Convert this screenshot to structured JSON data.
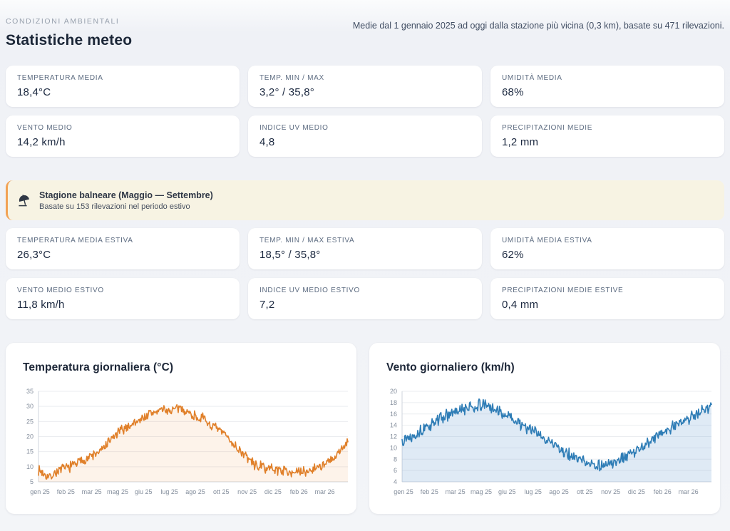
{
  "header": {
    "eyebrow": "CONDIZIONI AMBIENTALI",
    "title": "Statistiche meteo",
    "note": "Medie dal 1 gennaio 2025 ad oggi dalla stazione più vicina (0,3 km), basate su 471 rilevazioni."
  },
  "stats": {
    "general": [
      {
        "label": "TEMPERATURA MEDIA",
        "value": "18,4°C"
      },
      {
        "label": "TEMP. MIN / MAX",
        "value": "3,2° / 35,8°"
      },
      {
        "label": "UMIDITÀ MEDIA",
        "value": "68%"
      },
      {
        "label": "VENTO MEDIO",
        "value": "14,2 km/h"
      },
      {
        "label": "INDICE UV MEDIO",
        "value": "4,8"
      },
      {
        "label": "PRECIPITAZIONI MEDIE",
        "value": "1,2 mm"
      }
    ],
    "summer": [
      {
        "label": "TEMPERATURA MEDIA ESTIVA",
        "value": "26,3°C"
      },
      {
        "label": "TEMP. MIN / MAX ESTIVA",
        "value": "18,5° / 35,8°"
      },
      {
        "label": "UMIDITÀ MEDIA ESTIVA",
        "value": "62%"
      },
      {
        "label": "VENTO MEDIO ESTIVO",
        "value": "11,8 km/h"
      },
      {
        "label": "INDICE UV MEDIO ESTIVO",
        "value": "7,2"
      },
      {
        "label": "PRECIPITAZIONI MEDIE ESTIVE",
        "value": "0,4 mm"
      }
    ]
  },
  "banner": {
    "icon": "beach-umbrella",
    "title": "Stagione balneare (Maggio — Settembre)",
    "subtitle": "Basate su 153 rilevazioni nel periodo estivo",
    "accent_color": "#f2a254",
    "background_color": "#f7f3e3"
  },
  "chart_data": [
    {
      "type": "area",
      "title": "Temperatura giornaliera (°C)",
      "unit": "°C",
      "x_range": "1 gen 2025 — mar 2026",
      "n_points": 455,
      "ylim": [
        5,
        35
      ],
      "yticks": [
        5,
        10,
        15,
        20,
        25,
        30,
        35
      ],
      "xtick_labels": [
        "gen 25",
        "feb 25",
        "mar 25",
        "mag 25",
        "giu 25",
        "lug 25",
        "ago 25",
        "ott 25",
        "nov 25",
        "dic 25",
        "feb 26",
        "mar 26"
      ],
      "xtick_interval_days": 38,
      "grid": true,
      "line_color": "#e0802a",
      "fill_color": "rgba(240,166,90,0.13)",
      "seed": 7,
      "noise_amplitude": 2.0,
      "anchors": [
        [
          0.0,
          9.0
        ],
        [
          0.035,
          6.5
        ],
        [
          0.06,
          8.5
        ],
        [
          0.1,
          10.0
        ],
        [
          0.15,
          12.5
        ],
        [
          0.2,
          15.0
        ],
        [
          0.235,
          19.0
        ],
        [
          0.26,
          21.5
        ],
        [
          0.3,
          24.0
        ],
        [
          0.36,
          27.5
        ],
        [
          0.4,
          29.0
        ],
        [
          0.43,
          28.5
        ],
        [
          0.46,
          29.5
        ],
        [
          0.5,
          27.0
        ],
        [
          0.53,
          26.0
        ],
        [
          0.56,
          23.5
        ],
        [
          0.6,
          21.0
        ],
        [
          0.635,
          17.0
        ],
        [
          0.67,
          13.5
        ],
        [
          0.7,
          10.5
        ],
        [
          0.74,
          9.5
        ],
        [
          0.78,
          9.0
        ],
        [
          0.81,
          8.5
        ],
        [
          0.84,
          8.0
        ],
        [
          0.87,
          8.5
        ],
        [
          0.9,
          10.0
        ],
        [
          0.93,
          11.0
        ],
        [
          0.955,
          12.5
        ],
        [
          0.975,
          15.0
        ],
        [
          1.0,
          19.0
        ]
      ]
    },
    {
      "type": "area",
      "title": "Vento giornaliero (km/h)",
      "unit": "km/h",
      "x_range": "1 gen 2025 — mar 2026",
      "n_points": 455,
      "ylim": [
        4,
        20
      ],
      "yticks": [
        4,
        6,
        8,
        10,
        12,
        14,
        16,
        18,
        20
      ],
      "xtick_labels": [
        "gen 25",
        "feb 25",
        "mar 25",
        "mag 25",
        "giu 25",
        "lug 25",
        "ago 25",
        "ott 25",
        "nov 25",
        "dic 25",
        "feb 26",
        "mar 26"
      ],
      "xtick_interval_days": 38,
      "grid": true,
      "line_color": "#2f7db6",
      "fill_color": "rgba(140,180,220,0.28)",
      "seed": 13,
      "noise_amplitude": 1.25,
      "anchors": [
        [
          0.0,
          11.5
        ],
        [
          0.03,
          12.2
        ],
        [
          0.08,
          13.5
        ],
        [
          0.12,
          15.2
        ],
        [
          0.17,
          16.2
        ],
        [
          0.22,
          17.2
        ],
        [
          0.26,
          17.6
        ],
        [
          0.31,
          16.6
        ],
        [
          0.36,
          15.0
        ],
        [
          0.41,
          13.4
        ],
        [
          0.46,
          11.8
        ],
        [
          0.51,
          9.8
        ],
        [
          0.56,
          8.2
        ],
        [
          0.61,
          7.2
        ],
        [
          0.655,
          6.8
        ],
        [
          0.7,
          7.6
        ],
        [
          0.745,
          9.0
        ],
        [
          0.79,
          10.8
        ],
        [
          0.835,
          12.4
        ],
        [
          0.88,
          13.8
        ],
        [
          0.925,
          15.2
        ],
        [
          0.965,
          16.4
        ],
        [
          1.0,
          17.6
        ]
      ]
    }
  ]
}
